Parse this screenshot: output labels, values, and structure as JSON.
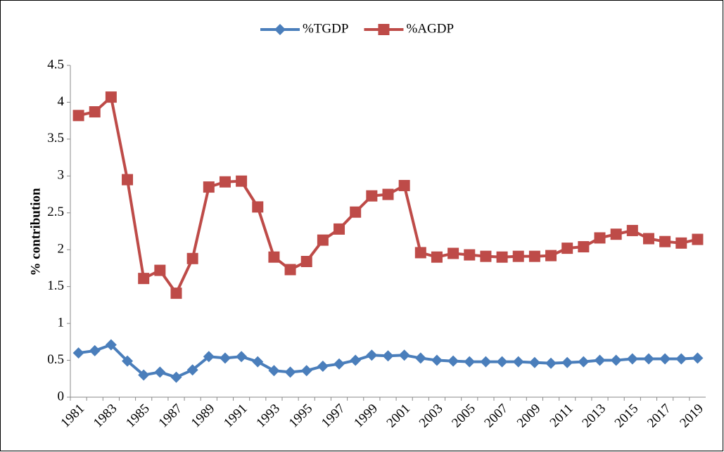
{
  "chart_data": {
    "type": "line",
    "y_label": "% contribution",
    "categories": [
      "1981",
      null,
      "1983",
      null,
      "1985",
      null,
      "1987",
      null,
      "1989",
      null,
      "1991",
      null,
      "1993",
      null,
      "1995",
      null,
      "1997",
      null,
      "1999",
      null,
      "2001",
      null,
      "2003",
      null,
      "2005",
      null,
      "2007",
      null,
      "2009",
      null,
      "2011",
      null,
      "2013",
      null,
      "2015",
      null,
      "2017",
      null,
      "2019"
    ],
    "series": [
      {
        "name": "%TGDP",
        "color": "#4a7ebb",
        "marker": "diamond",
        "values": [
          0.6,
          0.63,
          0.71,
          0.49,
          0.3,
          0.34,
          0.27,
          0.37,
          0.55,
          0.53,
          0.55,
          0.48,
          0.36,
          0.34,
          0.36,
          0.42,
          0.45,
          0.5,
          0.57,
          0.56,
          0.57,
          0.53,
          0.5,
          0.49,
          0.48,
          0.48,
          0.48,
          0.48,
          0.47,
          0.46,
          0.47,
          0.48,
          0.5,
          0.5,
          0.52,
          0.52,
          0.52,
          0.52,
          0.53
        ]
      },
      {
        "name": "%AGDP",
        "color": "#be4b48",
        "marker": "square",
        "values": [
          3.82,
          3.87,
          4.07,
          2.95,
          1.61,
          1.72,
          1.41,
          1.88,
          2.85,
          2.92,
          2.93,
          2.58,
          1.9,
          1.73,
          1.84,
          2.13,
          2.28,
          2.51,
          2.73,
          2.75,
          2.87,
          1.96,
          1.9,
          1.95,
          1.93,
          1.91,
          1.9,
          1.91,
          1.91,
          1.92,
          2.02,
          2.04,
          2.16,
          2.21,
          2.26,
          2.15,
          2.11,
          2.09,
          2.14
        ]
      }
    ],
    "ylim": [
      0,
      4.5
    ],
    "yticks": [
      0,
      0.5,
      1,
      1.5,
      2,
      2.5,
      3,
      3.5,
      4,
      4.5
    ],
    "grid": false,
    "legend": "top"
  }
}
